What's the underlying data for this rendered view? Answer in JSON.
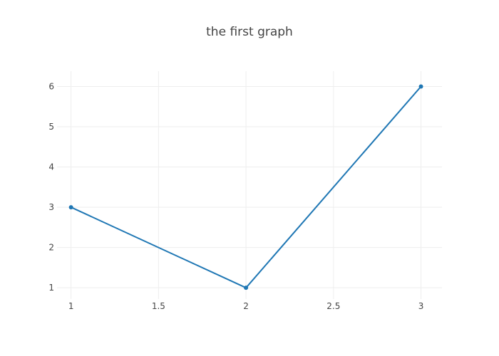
{
  "chart_data": {
    "type": "line",
    "title": "the first graph",
    "xlabel": "",
    "ylabel": "",
    "x": [
      1,
      2,
      3
    ],
    "series": [
      {
        "values": [
          3,
          1,
          6
        ],
        "color": "#1f77b4",
        "mode": "lines+markers"
      }
    ],
    "xlim": [
      0.92,
      3.12
    ],
    "ylim": [
      0.72,
      6.38
    ],
    "xticks": [
      1,
      1.5,
      2,
      2.5,
      3
    ],
    "xtick_labels": [
      "1",
      "1.5",
      "2",
      "2.5",
      "3"
    ],
    "yticks": [
      1,
      2,
      3,
      4,
      5,
      6
    ],
    "ytick_labels": [
      "1",
      "2",
      "3",
      "4",
      "5",
      "6"
    ],
    "grid": true,
    "legend": "none"
  }
}
